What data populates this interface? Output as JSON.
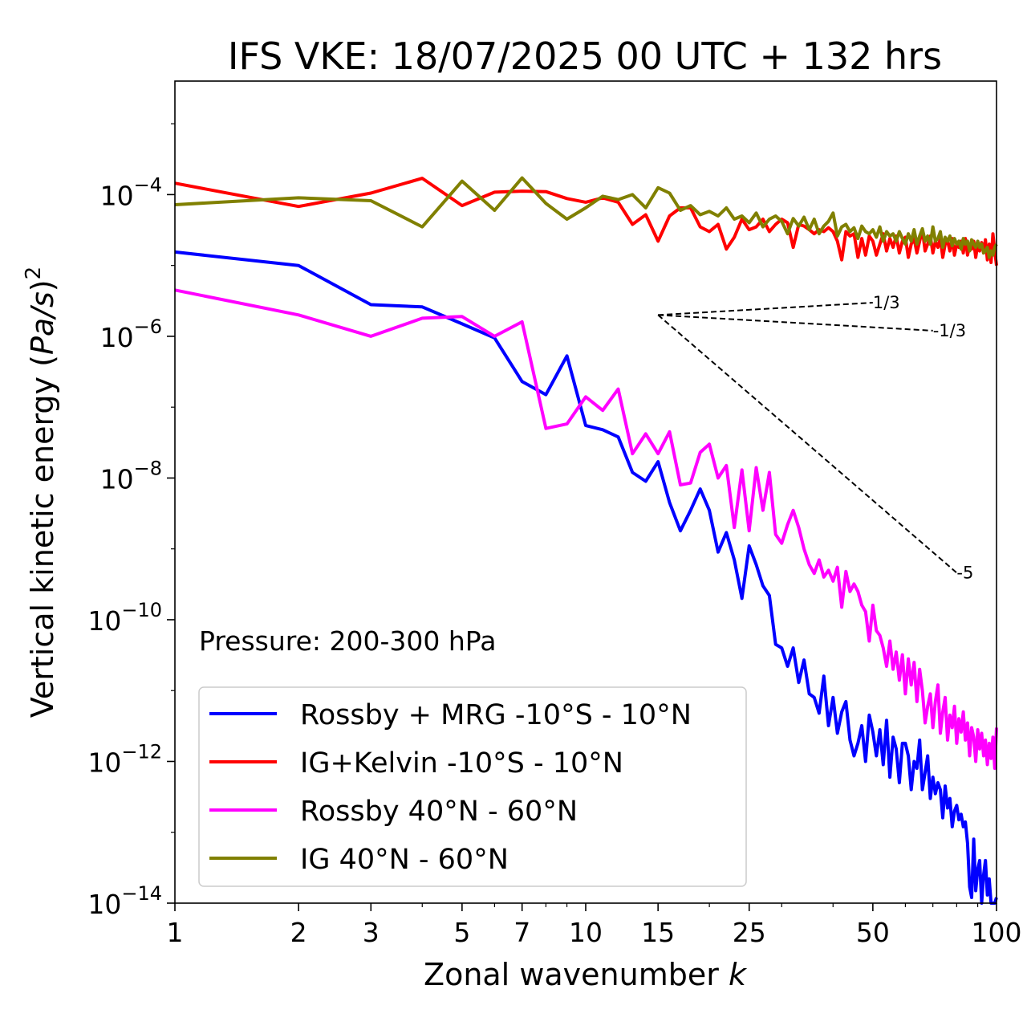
{
  "chart_data": {
    "type": "line",
    "title": "IFS VKE: 18/07/2025 00 UTC + 132 hrs",
    "xlabel_prefix": "Zonal wavenumber ",
    "xlabel_var": "k",
    "ylabel_prefix": "Vertical kinetic energy (",
    "ylabel_var": "Pa/s",
    "ylabel_suffix": ")",
    "ylabel_exp": "2",
    "x_scale": "log",
    "y_scale": "log",
    "xlim": [
      1,
      100
    ],
    "ylim": [
      1e-14,
      0.004
    ],
    "x_ticks": [
      1,
      2,
      3,
      5,
      7,
      10,
      15,
      25,
      50,
      100
    ],
    "y_ticks": [
      {
        "base": "10",
        "exp": "−4",
        "value": 0.0001
      },
      {
        "base": "10",
        "exp": "−6",
        "value": 1e-06
      },
      {
        "base": "10",
        "exp": "−8",
        "value": 1e-08
      },
      {
        "base": "10",
        "exp": "−10",
        "value": 1e-10
      },
      {
        "base": "10",
        "exp": "−12",
        "value": 1e-12
      },
      {
        "base": "10",
        "exp": "−14",
        "value": 1e-14
      }
    ],
    "annotation": "Pressure: 200-300 hPa",
    "legend_position": "lower-left",
    "grid": false,
    "slopes": [
      {
        "label": "1/3",
        "x": [
          15,
          50
        ],
        "y": [
          2e-06,
          2.98e-06
        ]
      },
      {
        "label": "-1/3",
        "x": [
          15,
          70
        ],
        "y": [
          2e-06,
          1.2e-06
        ]
      },
      {
        "label": "-5",
        "x": [
          15,
          80
        ],
        "y": [
          2e-06,
          4.6e-10
        ]
      }
    ],
    "series": [
      {
        "name": "Rossby + MRG -10°S - 10°N",
        "color": "#0000ff",
        "x": [
          1,
          2,
          3,
          4,
          5,
          6,
          7,
          8,
          9,
          10,
          11,
          12,
          13,
          14,
          15,
          16,
          17,
          18,
          19,
          20,
          21,
          22,
          23,
          24,
          25,
          26,
          27,
          28,
          29,
          30,
          31,
          32,
          33,
          34,
          35,
          36,
          37,
          38,
          39,
          40,
          41,
          42,
          43,
          44,
          45,
          46,
          47,
          48,
          49,
          50,
          51,
          52,
          53,
          54,
          55,
          56,
          57,
          58,
          59,
          60,
          61,
          62,
          63,
          64,
          65,
          66,
          67,
          68,
          69,
          70,
          71,
          72,
          73,
          74,
          75,
          76,
          77,
          78,
          79,
          80,
          81,
          82,
          83,
          84,
          85,
          86,
          87,
          88,
          89,
          90,
          91,
          92,
          93,
          94,
          95,
          96,
          97,
          98,
          99,
          100
        ],
        "y": [
          1.55e-05,
          1e-05,
          2.8e-06,
          2.6e-06,
          1.5e-06,
          9.5e-07,
          2.3e-07,
          1.5e-07,
          5.3e-07,
          5.5e-08,
          4.8e-08,
          3.8e-08,
          1.2e-08,
          9e-09,
          1.7e-08,
          4.5e-09,
          1.8e-09,
          3.5e-09,
          7e-09,
          3.5e-09,
          9e-10,
          1.7e-09,
          7e-10,
          2e-10,
          1.1e-09,
          6e-10,
          3e-10,
          2.2e-10,
          4.5e-11,
          4e-11,
          2.2e-11,
          4e-11,
          1.3e-11,
          2.7e-11,
          9e-12,
          8e-12,
          4.8e-12,
          1.6e-11,
          3.2e-12,
          8e-12,
          2.5e-12,
          5e-12,
          7e-12,
          2e-12,
          1.2e-12,
          1.8e-12,
          3.2e-12,
          1e-12,
          4.5e-12,
          2.6e-12,
          1.2e-12,
          2.8e-12,
          9e-13,
          3.8e-12,
          6e-13,
          2.2e-12,
          1.5e-12,
          5e-13,
          1.8e-12,
          1.8e-12,
          1.2e-12,
          4e-13,
          1e-12,
          8e-13,
          2e-12,
          4e-13,
          7e-13,
          1.2e-12,
          3e-13,
          6e-13,
          3.5e-13,
          5e-13,
          4e-13,
          1.6e-13,
          4.5e-13,
          2.2e-13,
          3e-13,
          1.2e-13,
          2e-13,
          2.4e-13,
          1.5e-13,
          1.8e-13,
          1.2e-13,
          1.4e-13,
          7e-14,
          1.7e-14,
          1.2e-14,
          8e-14,
          1.5e-14,
          3e-14,
          4e-14,
          1e-14,
          2.5e-14,
          4e-14,
          1.3e-14,
          2.2e-14,
          5e-15,
          1e-14,
          3e-15,
          1.2e-14
        ]
      },
      {
        "name": "IG+Kelvin -10°S - 10°N",
        "color": "#ff0000",
        "x": [
          1,
          2,
          3,
          4,
          5,
          6,
          7,
          8,
          9,
          10,
          11,
          12,
          13,
          14,
          15,
          16,
          17,
          18,
          19,
          20,
          21,
          22,
          23,
          24,
          25,
          26,
          27,
          28,
          29,
          30,
          31,
          32,
          33,
          34,
          35,
          36,
          37,
          38,
          39,
          40,
          41,
          42,
          43,
          44,
          45,
          46,
          47,
          48,
          49,
          50,
          51,
          52,
          53,
          54,
          55,
          56,
          57,
          58,
          59,
          60,
          61,
          62,
          63,
          64,
          65,
          66,
          67,
          68,
          69,
          70,
          71,
          72,
          73,
          74,
          75,
          76,
          77,
          78,
          79,
          80,
          81,
          82,
          83,
          84,
          85,
          86,
          87,
          88,
          89,
          90,
          91,
          92,
          93,
          94,
          95,
          96,
          97,
          98,
          99,
          100
        ],
        "y": [
          0.000145,
          6.8e-05,
          0.000105,
          0.00017,
          7e-05,
          0.000108,
          0.000112,
          0.00011,
          8.8e-05,
          7.8e-05,
          9e-05,
          7.8e-05,
          3.8e-05,
          5.2e-05,
          2.2e-05,
          5e-05,
          6.5e-05,
          6.5e-05,
          3.5e-05,
          3e-05,
          3.8e-05,
          1.7e-05,
          2.5e-05,
          4.5e-05,
          3.2e-05,
          3.5e-05,
          4.5e-05,
          3e-05,
          3.8e-05,
          4.5e-05,
          4e-05,
          1.8e-05,
          3.8e-05,
          3.6e-05,
          3.2e-05,
          2.8e-05,
          3.2e-05,
          3e-05,
          3.4e-05,
          3e-05,
          2.2e-05,
          1.2e-05,
          3e-05,
          2.6e-05,
          2.8e-05,
          1.3e-05,
          2.4e-05,
          1.4e-05,
          2.6e-05,
          2.2e-05,
          1.4e-05,
          2e-05,
          2.8e-05,
          1.6e-05,
          2.4e-05,
          1.8e-05,
          2.6e-05,
          1.5e-05,
          2.2e-05,
          2.5e-05,
          1.3e-05,
          2e-05,
          2.4e-05,
          1.5e-05,
          2.2e-05,
          3.2e-05,
          1.6e-05,
          2e-05,
          2.6e-05,
          1.5e-05,
          2.2e-05,
          1.8e-05,
          2.4e-05,
          1.3e-05,
          2e-05,
          2.2e-05,
          1.6e-05,
          2.4e-05,
          1.4e-05,
          2e-05,
          1.8e-05,
          2.2e-05,
          1.5e-05,
          2.4e-05,
          1.4e-05,
          2e-05,
          1.7e-05,
          2.2e-05,
          1.3e-05,
          2e-05,
          1.6e-05,
          2.1e-05,
          1.5e-05,
          2.3e-05,
          1.2e-05,
          2e-05,
          1.1e-05,
          2.8e-05,
          1.6e-05,
          1e-05
        ]
      },
      {
        "name": "Rossby 40°N - 60°N",
        "color": "#ff00ff",
        "x": [
          1,
          2,
          3,
          4,
          5,
          6,
          7,
          8,
          9,
          10,
          11,
          12,
          13,
          14,
          15,
          16,
          17,
          18,
          19,
          20,
          21,
          22,
          23,
          24,
          25,
          26,
          27,
          28,
          29,
          30,
          31,
          32,
          33,
          34,
          35,
          36,
          37,
          38,
          39,
          40,
          41,
          42,
          43,
          44,
          45,
          46,
          47,
          48,
          49,
          50,
          51,
          52,
          53,
          54,
          55,
          56,
          57,
          58,
          59,
          60,
          61,
          62,
          63,
          64,
          65,
          66,
          67,
          68,
          69,
          70,
          71,
          72,
          73,
          74,
          75,
          76,
          77,
          78,
          79,
          80,
          81,
          82,
          83,
          84,
          85,
          86,
          87,
          88,
          89,
          90,
          91,
          92,
          93,
          94,
          95,
          96,
          97,
          98,
          99,
          100
        ],
        "y": [
          4.5e-06,
          2e-06,
          1e-06,
          1.8e-06,
          1.9e-06,
          1e-06,
          1.6e-06,
          5e-08,
          5.8e-08,
          1.4e-07,
          9e-08,
          1.8e-07,
          2.2e-08,
          4.2e-08,
          2.2e-08,
          4.5e-08,
          8e-09,
          8.5e-09,
          2.3e-08,
          3e-08,
          1e-08,
          1.5e-08,
          2e-09,
          1.3e-08,
          1.8e-09,
          1.4e-08,
          3.5e-09,
          1.2e-08,
          1.6e-09,
          1.2e-09,
          2.2e-09,
          3.5e-09,
          2e-09,
          1e-09,
          6e-10,
          4.5e-10,
          7e-10,
          4e-10,
          5e-10,
          3.5e-10,
          5.5e-10,
          1.5e-10,
          4.8e-10,
          2.5e-10,
          3.2e-10,
          2.5e-10,
          1.6e-10,
          1.3e-10,
          5e-11,
          1.6e-10,
          7e-11,
          6e-11,
          4e-11,
          2.2e-11,
          5e-11,
          2e-11,
          3.5e-11,
          1.4e-11,
          3.2e-11,
          9e-12,
          2.8e-11,
          1.2e-11,
          2.5e-11,
          7e-12,
          2e-11,
          1e-11,
          3.5e-12,
          6e-12,
          9e-12,
          3e-12,
          7e-12,
          1.2e-11,
          2.5e-12,
          5e-12,
          8e-12,
          2e-12,
          4.5e-12,
          3e-12,
          6e-12,
          1.8e-12,
          4e-12,
          2.6e-12,
          5e-12,
          2e-12,
          3.5e-12,
          1.2e-12,
          3e-12,
          2.2e-12,
          1e-12,
          2.8e-12,
          1.5e-12,
          2.5e-12,
          1.2e-12,
          2e-12,
          9e-13,
          1.8e-12,
          1.1e-12,
          2.2e-12,
          8e-13,
          3e-12
        ]
      },
      {
        "name": "IG 40°N - 60°N",
        "color": "#808000",
        "x": [
          1,
          2,
          3,
          4,
          5,
          6,
          7,
          8,
          9,
          10,
          11,
          12,
          13,
          14,
          15,
          16,
          17,
          18,
          19,
          20,
          21,
          22,
          23,
          24,
          25,
          26,
          27,
          28,
          29,
          30,
          31,
          32,
          33,
          34,
          35,
          36,
          37,
          38,
          39,
          40,
          41,
          42,
          43,
          44,
          45,
          46,
          47,
          48,
          49,
          50,
          51,
          52,
          53,
          54,
          55,
          56,
          57,
          58,
          59,
          60,
          61,
          62,
          63,
          64,
          65,
          66,
          67,
          68,
          69,
          70,
          71,
          72,
          73,
          74,
          75,
          76,
          77,
          78,
          79,
          80,
          81,
          82,
          83,
          84,
          85,
          86,
          87,
          88,
          89,
          90,
          91,
          92,
          93,
          94,
          95,
          96,
          97,
          98,
          99,
          100
        ],
        "y": [
          7.2e-05,
          9e-05,
          8.2e-05,
          3.5e-05,
          0.000155,
          6e-05,
          0.000172,
          7.5e-05,
          4.5e-05,
          6.5e-05,
          9.5e-05,
          8.5e-05,
          0.0001,
          6.5e-05,
          0.000125,
          0.000105,
          6e-05,
          7e-05,
          5.2e-05,
          5.8e-05,
          5e-05,
          6.5e-05,
          4.5e-05,
          5e-05,
          4e-05,
          5.5e-05,
          3.5e-05,
          4.5e-05,
          5e-05,
          4.2e-05,
          2.8e-05,
          4.6e-05,
          3.6e-05,
          4.8e-05,
          3.2e-05,
          4.5e-05,
          2.8e-05,
          3.6e-05,
          4.2e-05,
          5.5e-05,
          2.6e-05,
          3.5e-05,
          3.8e-05,
          3e-05,
          3.4e-05,
          2.4e-05,
          3.6e-05,
          3e-05,
          2.8e-05,
          3.2e-05,
          2.5e-05,
          3.5e-05,
          2.2e-05,
          3e-05,
          2.6e-05,
          2.8e-05,
          2.2e-05,
          3e-05,
          2.4e-05,
          2e-05,
          2.8e-05,
          2.2e-05,
          3.2e-05,
          2e-05,
          2.6e-05,
          3.3e-05,
          2.2e-05,
          2.6e-05,
          2e-05,
          3.5e-05,
          2.2e-05,
          2.4e-05,
          3e-05,
          1.8e-05,
          2.5e-05,
          2.2e-05,
          2.6e-05,
          1.9e-05,
          2.4e-05,
          2e-05,
          2.2e-05,
          1.7e-05,
          2.4e-05,
          2e-05,
          2.2e-05,
          1.6e-05,
          2.3e-05,
          2e-05,
          1.8e-05,
          2.2e-05,
          1.8e-05,
          2e-05,
          1.5e-05,
          1.6e-05,
          1.8e-05,
          1.3e-05,
          1.6e-05,
          1.4e-05,
          1.8e-05,
          2e-05
        ]
      }
    ]
  }
}
